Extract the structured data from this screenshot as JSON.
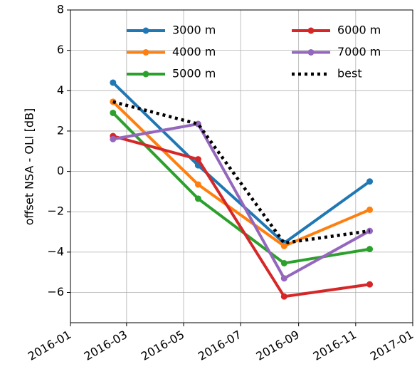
{
  "chart_data": {
    "type": "line",
    "ylabel": "offset NSA - OLI [dB]",
    "x": [
      "2016-02",
      "2016-05",
      "2016-08",
      "2016-11"
    ],
    "xlim": [
      "2016-01",
      "2017-01"
    ],
    "xticks": [
      "2016-01",
      "2016-03",
      "2016-05",
      "2016-07",
      "2016-09",
      "2016-11",
      "2017-01"
    ],
    "ylim": [
      -7.5,
      8
    ],
    "yticks": [
      {
        "value": -6,
        "label": "−6"
      },
      {
        "value": -4,
        "label": "−4"
      },
      {
        "value": -2,
        "label": "−2"
      },
      0,
      2,
      4,
      6,
      8
    ],
    "grid": true,
    "legend": "upper center",
    "series": [
      {
        "name": "3000 m",
        "color": "#1f77b4",
        "marker": true,
        "values": [
          4.4,
          0.3,
          -3.55,
          -0.5
        ]
      },
      {
        "name": "4000 m",
        "color": "#ff7f0e",
        "marker": true,
        "values": [
          3.45,
          -0.65,
          -3.7,
          -1.9
        ]
      },
      {
        "name": "5000 m",
        "color": "#2ca02c",
        "marker": true,
        "values": [
          2.9,
          -1.35,
          -4.55,
          -3.85
        ]
      },
      {
        "name": "6000 m",
        "color": "#d62728",
        "marker": true,
        "values": [
          1.75,
          0.6,
          -6.2,
          -5.6
        ]
      },
      {
        "name": "7000 m",
        "color": "#9467bd",
        "marker": true,
        "values": [
          1.6,
          2.35,
          -5.3,
          -2.95
        ]
      },
      {
        "name": "best",
        "color": "#000000",
        "marker": false,
        "dashed": true,
        "values": [
          3.45,
          2.35,
          -3.55,
          -2.95
        ]
      }
    ]
  }
}
